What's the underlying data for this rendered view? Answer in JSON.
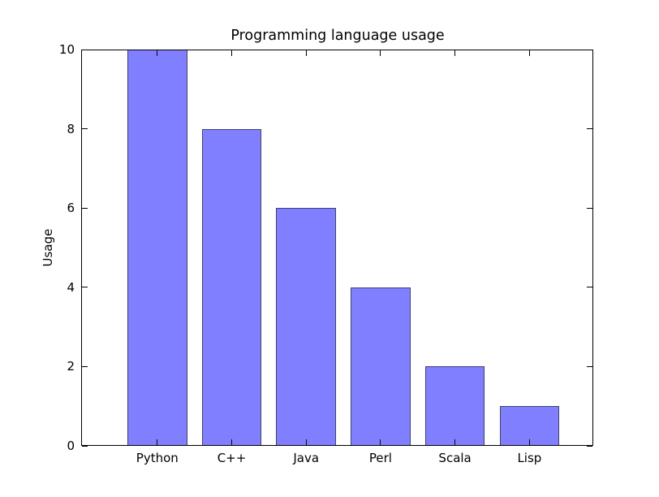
{
  "figure": {
    "background": "#ffffff",
    "text_color": "#000000"
  },
  "chart_data": {
    "type": "bar",
    "title": "Programming language usage",
    "xlabel": "",
    "ylabel": "Usage",
    "categories": [
      "Python",
      "C++",
      "Java",
      "Perl",
      "Scala",
      "Lisp"
    ],
    "values": [
      10,
      8,
      6,
      4,
      2,
      1
    ],
    "ylim": [
      0,
      10
    ],
    "yticks": [
      0,
      2,
      4,
      6,
      8,
      10
    ],
    "grid": false,
    "legend": "none",
    "tick_direction": "in",
    "bar_color": "rgba(0,0,255,0.5)",
    "bar_edge_color": "rgba(0,0,0,0.5)",
    "axis_color": "#000000"
  }
}
